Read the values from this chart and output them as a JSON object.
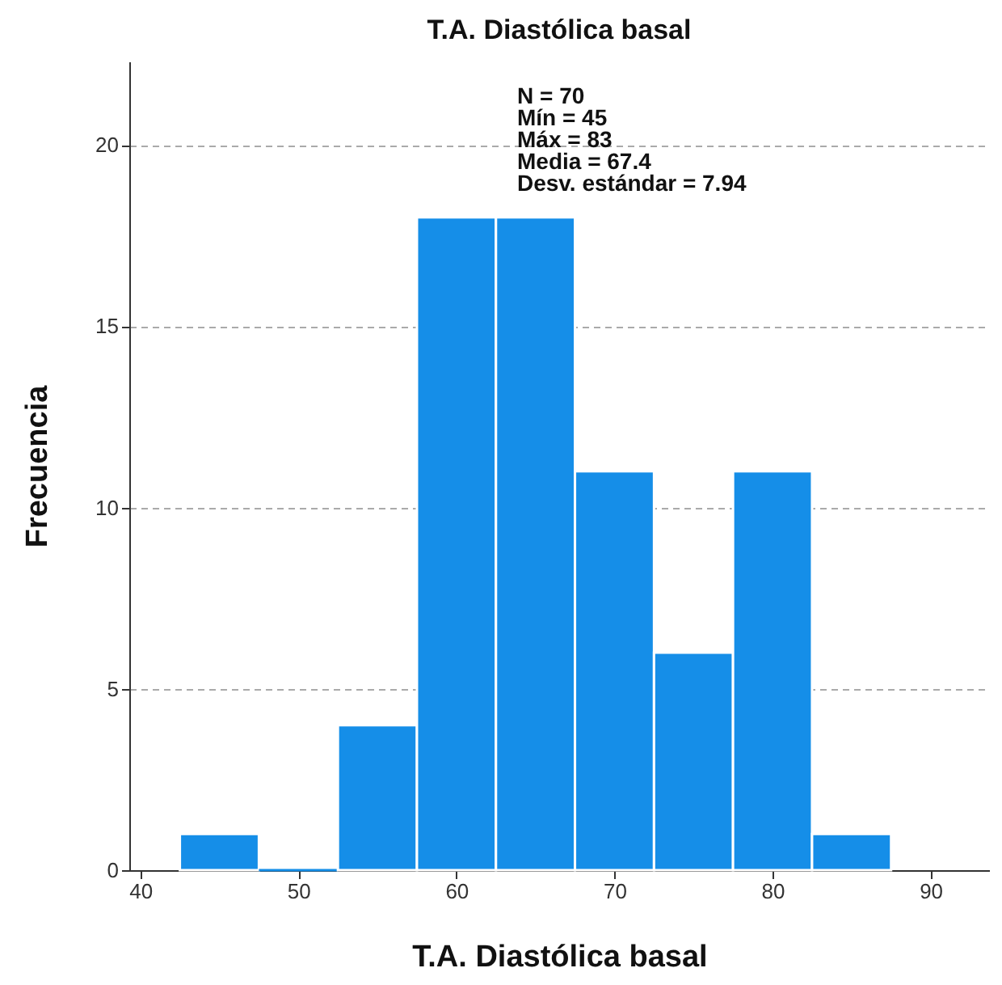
{
  "chart_data": {
    "type": "histogram",
    "title": "T.A. Diastólica basal",
    "xlabel": "T.A. Diastólica basal",
    "ylabel": "Frecuencia",
    "bins": [
      42.5,
      47.5,
      52.5,
      57.5,
      62.5,
      67.5,
      72.5,
      77.5,
      82.5,
      87.5
    ],
    "values": [
      1,
      0,
      4,
      18,
      18,
      11,
      6,
      11,
      1
    ],
    "color": "#158ee8",
    "xlim": [
      39.3,
      93.7
    ],
    "xticks": [
      40,
      50,
      60,
      70,
      80,
      90
    ],
    "ylim": [
      0,
      22.3
    ],
    "yticks": [
      0,
      5,
      10,
      15,
      20
    ],
    "grid": "y",
    "annotations": [
      "N = 70",
      "Mín = 45",
      "Máx = 83",
      "Media = 67.4",
      "Desv. estándar = 7.94"
    ]
  }
}
